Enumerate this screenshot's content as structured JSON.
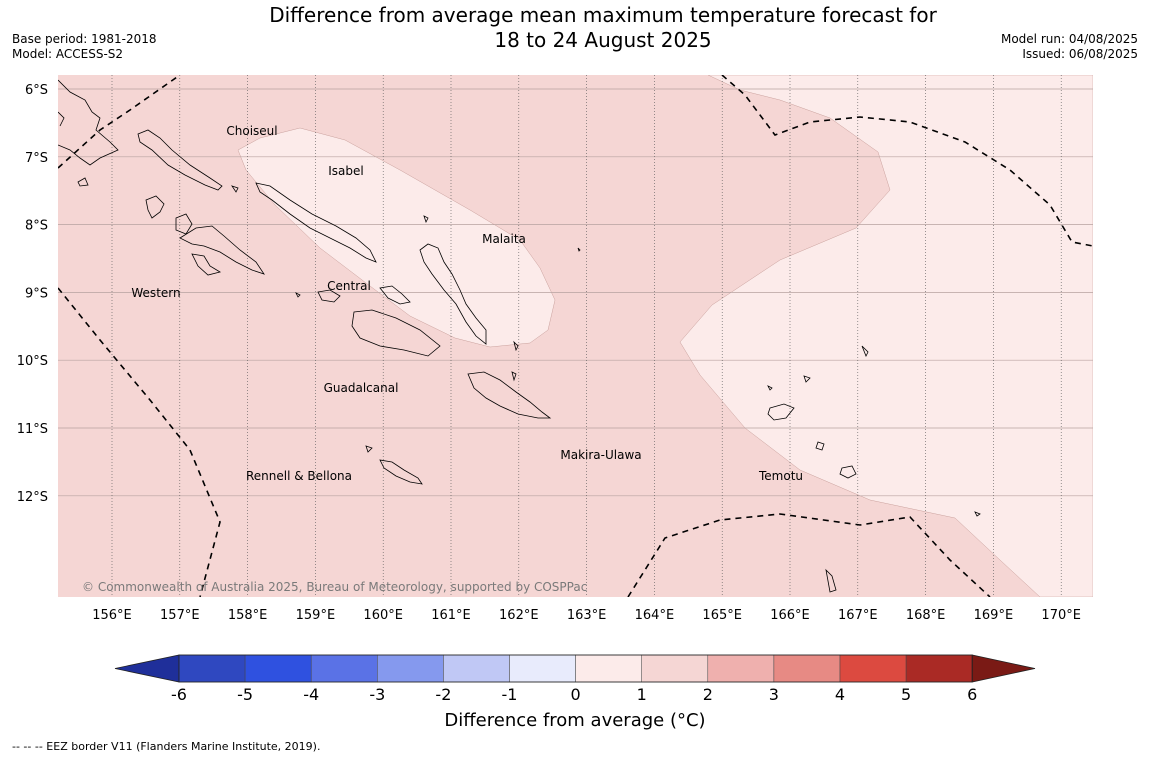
{
  "header": {
    "title_line1": "Difference from average mean maximum temperature forecast for",
    "title_line2": "18 to 24 August 2025",
    "base_period": "Base period: 1981-2018",
    "model": "Model: ACCESS-S2",
    "model_run": "Model run: 04/08/2025",
    "issued": "Issued: 06/08/2025"
  },
  "map": {
    "lat_labels": [
      "6°S",
      "7°S",
      "8°S",
      "9°S",
      "10°S",
      "11°S",
      "12°S"
    ],
    "lon_labels": [
      "156°E",
      "157°E",
      "158°E",
      "159°E",
      "160°E",
      "161°E",
      "162°E",
      "163°E",
      "164°E",
      "165°E",
      "166°E",
      "167°E",
      "168°E",
      "169°E",
      "170°E"
    ],
    "province_labels": [
      "Choiseul",
      "Isabel",
      "Malaita",
      "Western",
      "Central",
      "Guadalcanal",
      "Makira-Ulawa",
      "Rennell & Bellona",
      "Temotu"
    ],
    "fill_colors": {
      "range_1_2": "#f5d6d4",
      "range_0_1": "#fcebea"
    },
    "credit": "© Commonwealth of Australia 2025, Bureau of Meteorology, supported by COSPPac"
  },
  "colorbar": {
    "ticks": [
      "-6",
      "-5",
      "-4",
      "-3",
      "-2",
      "-1",
      "0",
      "1",
      "2",
      "3",
      "4",
      "5",
      "6"
    ],
    "colors": [
      "#1f2f9a",
      "#2f48c0",
      "#2f51e0",
      "#5a72e6",
      "#8599ee",
      "#c0c8f5",
      "#e8ebfc",
      "#fcebea",
      "#f5d6d4",
      "#efb0ae",
      "#e78a84",
      "#dc4a40",
      "#aa2a25",
      "#7a1a15"
    ],
    "title": "Difference from average (°C)"
  },
  "footnote": "--  --  -- EEZ border V11 (Flanders Marine Institute, 2019)."
}
